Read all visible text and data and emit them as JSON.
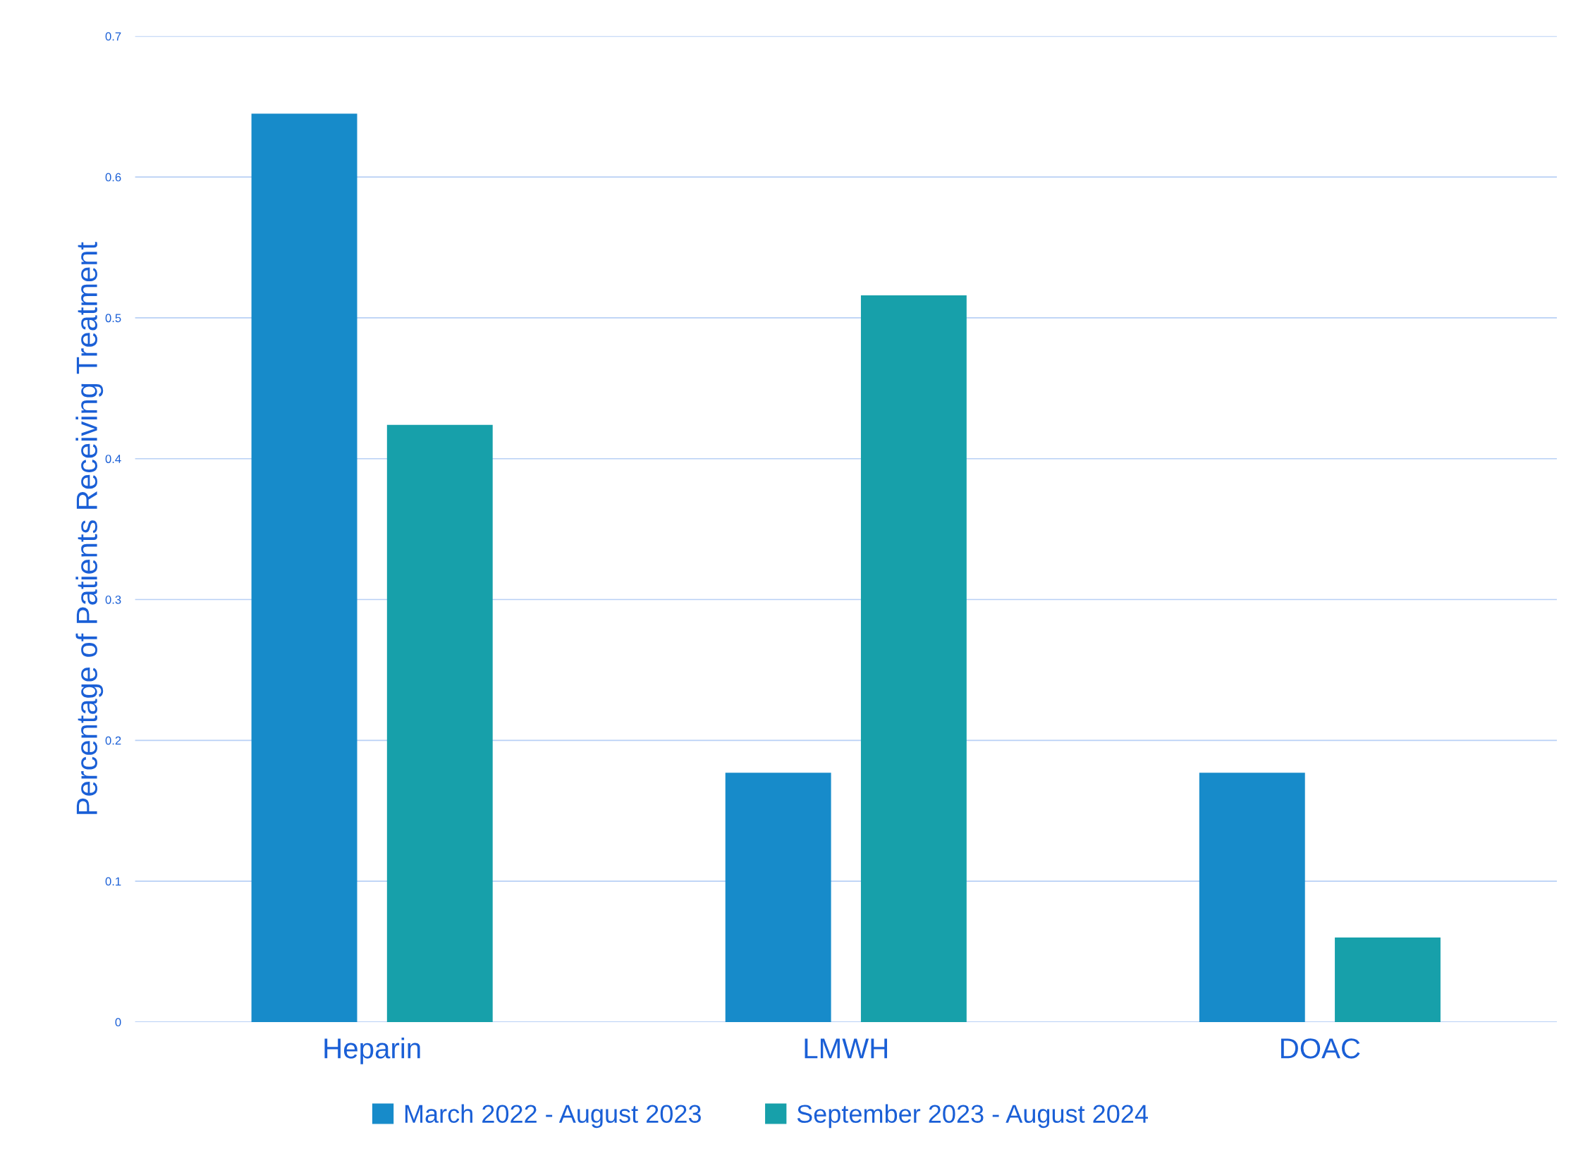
{
  "chart_data": {
    "type": "bar",
    "ylabel": "Percentage of Patients Receiving Treatment",
    "categories": [
      "Heparin",
      "LMWH",
      "DOAC"
    ],
    "series": [
      {
        "name": "March 2022 - August 2023",
        "color": "#178bca",
        "values": [
          0.645,
          0.177,
          0.177
        ]
      },
      {
        "name": "September 2023 - August 2024",
        "color": "#17a0aa",
        "values": [
          0.424,
          0.516,
          0.06
        ]
      }
    ],
    "ylim": [
      0,
      0.7
    ],
    "yticks": [
      0,
      0.1,
      0.2,
      0.3,
      0.4,
      0.5,
      0.6,
      0.7
    ],
    "grid": "y",
    "legend": "bottom"
  }
}
